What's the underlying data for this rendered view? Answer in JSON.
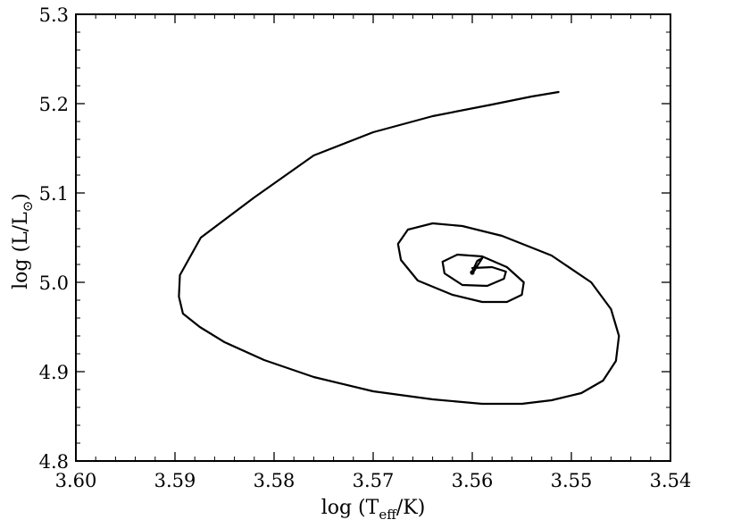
{
  "chart_data": {
    "type": "line",
    "title": "",
    "xlabel": {
      "prefix": "log (T",
      "sub": "eff",
      "suffix": "/K)"
    },
    "ylabel": {
      "prefix": "log (L/L",
      "sub": "⊙",
      "suffix": ")"
    },
    "xlim": [
      3.6,
      3.54
    ],
    "ylim": [
      4.8,
      5.3
    ],
    "x_inverted": true,
    "grid": false,
    "legend": "none",
    "line_color": "#000000",
    "xticks": [
      3.6,
      3.59,
      3.58,
      3.57,
      3.56,
      3.55,
      3.54
    ],
    "xtick_labels": [
      "3.60",
      "3.59",
      "3.58",
      "3.57",
      "3.56",
      "3.55",
      "3.54"
    ],
    "yticks": [
      4.8,
      4.9,
      5.0,
      5.1,
      5.2,
      5.3
    ],
    "ytick_labels": [
      "4.8",
      "4.9",
      "5.0",
      "5.1",
      "5.2",
      "5.3"
    ],
    "series": [
      {
        "x": [
          3.5513,
          3.554,
          3.558,
          3.564,
          3.57,
          3.576,
          3.582,
          3.5874,
          3.5895,
          3.5896,
          3.5892,
          3.5875,
          3.585,
          3.581,
          3.576,
          3.57,
          3.564,
          3.559,
          3.555,
          3.552,
          3.549,
          3.5468,
          3.5455,
          3.5452,
          3.546,
          3.548,
          3.552,
          3.557,
          3.561,
          3.564,
          3.5665,
          3.5675,
          3.5672,
          3.5655,
          3.562,
          3.559,
          3.5565,
          3.555,
          3.5548,
          3.5565,
          3.559,
          3.5615,
          3.563,
          3.5628,
          3.561,
          3.5585,
          3.5568,
          3.5566,
          3.558,
          3.56,
          3.5598,
          3.559,
          3.5595,
          3.56
        ],
        "y": [
          5.213,
          5.208,
          5.199,
          5.186,
          5.168,
          5.142,
          5.095,
          5.05,
          5.008,
          4.984,
          4.965,
          4.95,
          4.933,
          4.913,
          4.894,
          4.878,
          4.869,
          4.864,
          4.864,
          4.868,
          4.876,
          4.89,
          4.912,
          4.94,
          4.97,
          5.0,
          5.03,
          5.052,
          5.063,
          5.066,
          5.059,
          5.043,
          5.025,
          5.002,
          4.986,
          4.978,
          4.978,
          4.986,
          5.0,
          5.017,
          5.029,
          5.031,
          5.023,
          5.01,
          4.997,
          4.996,
          5.004,
          5.012,
          5.017,
          5.016,
          5.013,
          5.027,
          5.024,
          5.012
        ]
      }
    ],
    "end_marker": {
      "x": 3.56,
      "y": 5.011
    }
  }
}
